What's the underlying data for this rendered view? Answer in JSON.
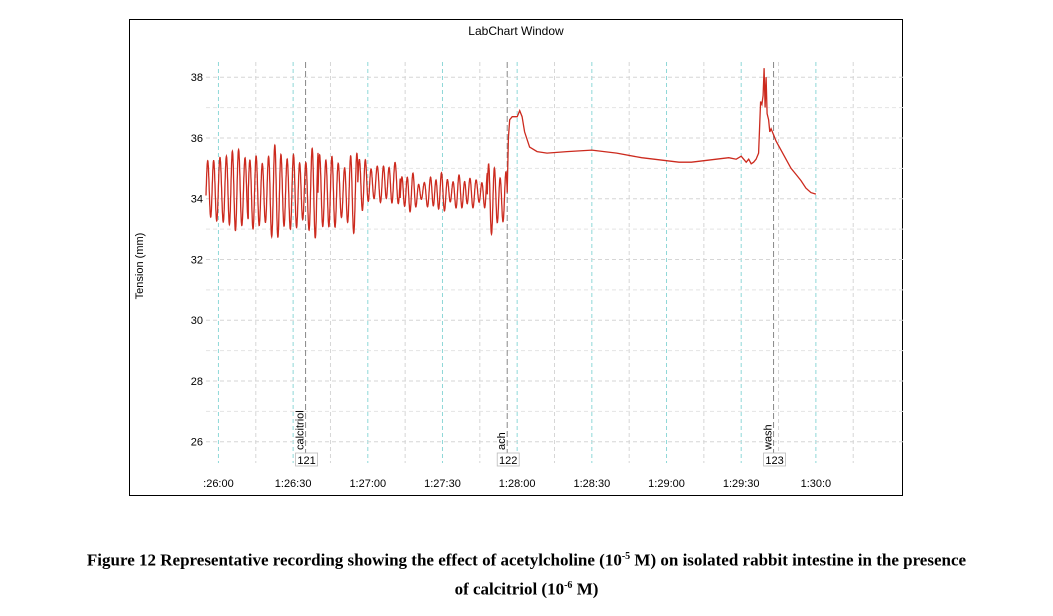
{
  "window_title": "LabChart Window",
  "chart_data": {
    "type": "line",
    "title": "LabChart Window",
    "ylabel": "Tension (mm)",
    "xlabel": "",
    "ylim": [
      25.3,
      38.5
    ],
    "xlim_seconds": [
      1555,
      1835
    ],
    "yticks": [
      26,
      28,
      30,
      32,
      34,
      36,
      38
    ],
    "xticks": [
      {
        "t": 1560,
        "label": ":26:00"
      },
      {
        "t": 1590,
        "label": "1:26:30"
      },
      {
        "t": 1620,
        "label": "1:27:00"
      },
      {
        "t": 1650,
        "label": "1:27:30"
      },
      {
        "t": 1680,
        "label": "1:28:00"
      },
      {
        "t": 1710,
        "label": "1:28:30"
      },
      {
        "t": 1740,
        "label": "1:29:00"
      },
      {
        "t": 1770,
        "label": "1:29:30"
      },
      {
        "t": 1800,
        "label": "1:30:0"
      }
    ],
    "grid": true,
    "series_color": "#cc2a1e",
    "comments": [
      {
        "t": 1595,
        "text": "calcitriol",
        "num": "121"
      },
      {
        "t": 1676,
        "text": "ach",
        "num": "122"
      },
      {
        "t": 1783,
        "text": "wash",
        "num": "123"
      }
    ],
    "series": [
      {
        "segments": [
          {
            "t0": 1555,
            "t1": 1572,
            "kind": "osc",
            "center": 34.3,
            "amp": 1.1,
            "period": 2.5
          },
          {
            "t0": 1572,
            "t1": 1600,
            "kind": "osc",
            "center": 34.2,
            "amp": 1.2,
            "period": 2.5
          },
          {
            "t0": 1600,
            "t1": 1616,
            "kind": "osc",
            "center": 34.2,
            "amp": 1.1,
            "period": 2.5
          },
          {
            "t0": 1616,
            "t1": 1633,
            "kind": "osc",
            "center": 34.5,
            "amp": 0.6,
            "period": 2.4
          },
          {
            "t0": 1633,
            "t1": 1668,
            "kind": "osc",
            "center": 34.2,
            "amp": 0.45,
            "period": 2.3
          },
          {
            "t0": 1668,
            "t1": 1676,
            "kind": "osc",
            "center": 34.0,
            "amp": 0.9,
            "period": 2.3
          }
        ],
        "points": [
          [
            1676,
            34.2
          ],
          [
            1676.5,
            36.0
          ],
          [
            1677,
            36.6
          ],
          [
            1678,
            36.7
          ],
          [
            1679,
            36.7
          ],
          [
            1680,
            36.7
          ],
          [
            1681,
            36.9
          ],
          [
            1682,
            36.7
          ],
          [
            1683,
            36.2
          ],
          [
            1685,
            35.7
          ],
          [
            1688,
            35.55
          ],
          [
            1692,
            35.5
          ],
          [
            1700,
            35.55
          ],
          [
            1710,
            35.6
          ],
          [
            1720,
            35.5
          ],
          [
            1730,
            35.35
          ],
          [
            1740,
            35.25
          ],
          [
            1745,
            35.2
          ],
          [
            1750,
            35.2
          ],
          [
            1755,
            35.25
          ],
          [
            1760,
            35.3
          ],
          [
            1765,
            35.35
          ],
          [
            1768,
            35.3
          ],
          [
            1770,
            35.4
          ],
          [
            1772,
            35.2
          ],
          [
            1773,
            35.3
          ],
          [
            1774,
            35.15
          ],
          [
            1775,
            35.2
          ],
          [
            1776,
            35.3
          ],
          [
            1777,
            35.5
          ],
          [
            1777.8,
            37.2
          ],
          [
            1778.3,
            37.1
          ],
          [
            1778.8,
            37.4
          ],
          [
            1779.2,
            38.3
          ],
          [
            1779.6,
            37.0
          ],
          [
            1780,
            38.0
          ],
          [
            1780.4,
            36.8
          ],
          [
            1781,
            36.6
          ],
          [
            1781.5,
            36.2
          ],
          [
            1782,
            36.3
          ],
          [
            1783,
            36.1
          ],
          [
            1784,
            35.9
          ],
          [
            1786,
            35.6
          ],
          [
            1788,
            35.3
          ],
          [
            1790,
            35.0
          ],
          [
            1792,
            34.8
          ],
          [
            1794,
            34.6
          ],
          [
            1796,
            34.35
          ],
          [
            1798,
            34.2
          ],
          [
            1800,
            34.15
          ]
        ]
      }
    ]
  },
  "caption": {
    "text_a": "Figure 12 Representative recording showing the effect of acetylcholine (10",
    "sup_a": "-5",
    "text_b": " M) on isolated rabbit intestine in the presence",
    "text_c": "of calcitriol (10",
    "sup_b": "-6",
    "text_d": " M)"
  }
}
